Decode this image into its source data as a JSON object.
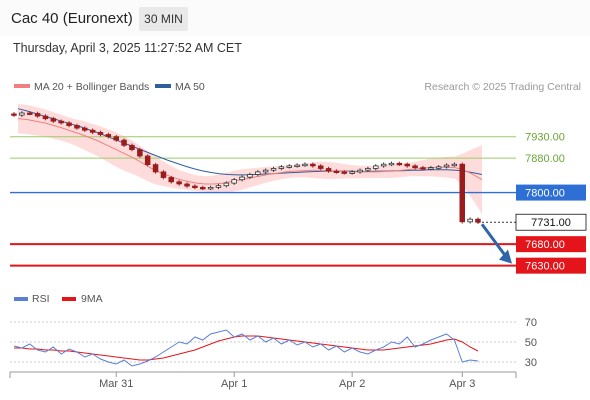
{
  "header": {
    "title": "Cac 40 (Euronext)",
    "timeframe": "30 MIN",
    "datetime": "Thursday, April 3, 2025 11:27:52 AM CET"
  },
  "legend": {
    "ma20": "MA 20 + Bollinger Bands",
    "ma50": "MA 50",
    "credit": "Research © 2025 Trading Central",
    "rsi": "RSI",
    "rsi_ma": "9MA"
  },
  "colors": {
    "ma20": "#f08080",
    "ma50": "#2f5f9f",
    "bands": "#ffd6d6",
    "up": "#333333",
    "down": "#9a1c1c",
    "red_line": "#e3151b",
    "green_line": "#9ccc65",
    "blue_line": "#2e6fd6",
    "rsi": "#5b7fd6",
    "rsi_ma": "#e3151b"
  },
  "chart_data": [
    {
      "type": "line",
      "title": "",
      "x_ticks": [
        "Mar 31",
        "Apr 1",
        "Apr 2",
        "Apr 3"
      ],
      "price_levels": [
        {
          "value": 7930.0,
          "label": "7930.00",
          "kind": "resistance",
          "color": "#9ccc65"
        },
        {
          "value": 7880.0,
          "label": "7880.00",
          "kind": "resistance",
          "color": "#9ccc65"
        },
        {
          "value": 7800.0,
          "label": "7800.00",
          "kind": "pivot",
          "color": "#2e6fd6"
        },
        {
          "value": 7731.0,
          "label": "7731.00",
          "kind": "last_price",
          "color": "#111111"
        },
        {
          "value": 7680.0,
          "label": "7680.00",
          "kind": "support",
          "color": "#e3151b"
        },
        {
          "value": 7630.0,
          "label": "7630.00",
          "kind": "support",
          "color": "#e3151b"
        }
      ],
      "y_range": [
        7585,
        8020
      ],
      "series": [
        {
          "name": "Price",
          "style": "candlestick",
          "values": [
            7980,
            7985,
            7984,
            7978,
            7972,
            7966,
            7962,
            7956,
            7950,
            7945,
            7940,
            7935,
            7930,
            7922,
            7910,
            7900,
            7885,
            7865,
            7848,
            7835,
            7825,
            7820,
            7815,
            7812,
            7810,
            7812,
            7816,
            7822,
            7830,
            7836,
            7842,
            7848,
            7852,
            7856,
            7860,
            7862,
            7864,
            7866,
            7862,
            7856,
            7850,
            7848,
            7846,
            7848,
            7852,
            7856,
            7862,
            7866,
            7868,
            7866,
            7862,
            7858,
            7856,
            7858,
            7860,
            7864,
            7866,
            7732,
            7738,
            7731
          ]
        },
        {
          "name": "MA 20",
          "style": "line",
          "values": [
            7972,
            7970,
            7966,
            7962,
            7956,
            7950,
            7943,
            7936,
            7928,
            7920,
            7910,
            7900,
            7890,
            7880,
            7868,
            7856,
            7846,
            7838,
            7831,
            7826,
            7822,
            7820,
            7820,
            7822,
            7826,
            7830,
            7834,
            7838,
            7842,
            7845,
            7848,
            7850,
            7851,
            7852,
            7852,
            7851,
            7850,
            7849,
            7848,
            7848,
            7848,
            7849,
            7850,
            7852,
            7854,
            7856,
            7858,
            7859,
            7859,
            7858,
            7852,
            7842,
            7830
          ]
        },
        {
          "name": "MA 50",
          "style": "line",
          "values": [
            7995,
            7990,
            7984,
            7978,
            7972,
            7966,
            7960,
            7954,
            7947,
            7940,
            7932,
            7924,
            7916,
            7908,
            7900,
            7892,
            7884,
            7876,
            7869,
            7862,
            7856,
            7851,
            7847,
            7844,
            7842,
            7841,
            7841,
            7842,
            7843,
            7844,
            7845,
            7846,
            7847,
            7848,
            7849,
            7850,
            7850,
            7850,
            7850,
            7849,
            7849,
            7850,
            7850,
            7851,
            7851,
            7852,
            7852,
            7853,
            7853,
            7853,
            7852,
            7850,
            7846,
            7842
          ]
        }
      ]
    },
    {
      "type": "line",
      "title": "",
      "y_ticks": [
        30,
        50,
        70
      ],
      "y_range": [
        20,
        80
      ],
      "series": [
        {
          "name": "RSI",
          "values": [
            46,
            44,
            48,
            42,
            40,
            45,
            38,
            43,
            40,
            35,
            38,
            33,
            30,
            28,
            32,
            26,
            28,
            31,
            35,
            40,
            45,
            50,
            48,
            55,
            52,
            58,
            60,
            62,
            55,
            58,
            52,
            56,
            50,
            54,
            48,
            52,
            47,
            50,
            45,
            48,
            42,
            46,
            40,
            44,
            40,
            38,
            42,
            45,
            50,
            48,
            55,
            45,
            48,
            52,
            55,
            58,
            52,
            30,
            32,
            31
          ]
        },
        {
          "name": "9MA",
          "values": [
            44,
            44,
            43,
            43,
            42,
            42,
            41,
            41,
            40,
            39,
            38,
            37,
            36,
            35,
            34,
            33,
            32,
            32,
            33,
            34,
            36,
            38,
            40,
            42,
            45,
            48,
            51,
            53,
            55,
            56,
            56,
            56,
            55,
            54,
            53,
            52,
            51,
            50,
            49,
            48,
            47,
            46,
            45,
            44,
            43,
            42,
            42,
            42,
            43,
            44,
            45,
            46,
            47,
            48,
            50,
            52,
            53,
            50,
            45,
            41
          ]
        }
      ]
    }
  ]
}
